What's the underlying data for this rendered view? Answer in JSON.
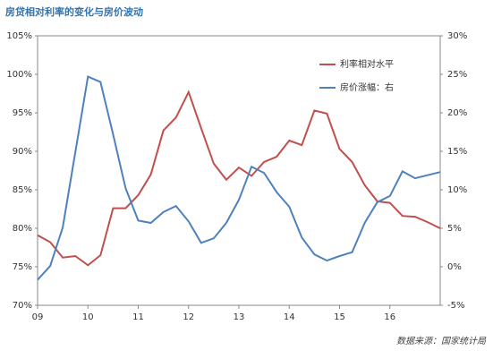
{
  "chart_data": {
    "type": "line",
    "title": "房贷相对利率的变化与房价波动",
    "source": "数据来源：国家统计局",
    "x": [
      9,
      9.25,
      9.5,
      9.75,
      10,
      10.25,
      10.5,
      10.75,
      11,
      11.25,
      11.5,
      11.75,
      12,
      12.25,
      12.5,
      12.75,
      13,
      13.25,
      13.5,
      13.75,
      14,
      14.25,
      14.5,
      14.75,
      15,
      15.25,
      15.5,
      15.75,
      16,
      16.25,
      16.5,
      16.75,
      17
    ],
    "xlim": [
      9,
      17
    ],
    "xticks": [
      {
        "value": 9,
        "label": "09"
      },
      10,
      11,
      12,
      13,
      14,
      15,
      16
    ],
    "ylim": [
      70,
      105
    ],
    "yticks": [
      {
        "value": 70,
        "label": "70%"
      },
      {
        "value": 75,
        "label": "75%"
      },
      {
        "value": 80,
        "label": "80%"
      },
      {
        "value": 85,
        "label": "85%"
      },
      {
        "value": 90,
        "label": "90%"
      },
      {
        "value": 95,
        "label": "95%"
      },
      {
        "value": 100,
        "label": "100%"
      },
      {
        "value": 105,
        "label": "105%"
      }
    ],
    "y2lim": [
      -5,
      30
    ],
    "y2ticks": [
      {
        "value": -5,
        "label": "-5%"
      },
      {
        "value": 0,
        "label": "0%"
      },
      {
        "value": 5,
        "label": "5%"
      },
      {
        "value": 10,
        "label": "10%"
      },
      {
        "value": 15,
        "label": "15%"
      },
      {
        "value": 20,
        "label": "20%"
      },
      {
        "value": 25,
        "label": "25%"
      },
      {
        "value": 30,
        "label": "30%"
      }
    ],
    "legend": "top-right",
    "series": [
      {
        "name": "利率相对水平",
        "color": "#c0504d",
        "values": [
          79.1,
          78.2,
          76.2,
          76.4,
          75.2,
          76.5,
          82.6,
          82.6,
          84.3,
          87.0,
          92.7,
          94.4,
          97.7,
          93.0,
          88.4,
          86.3,
          87.9,
          86.8,
          88.6,
          89.3,
          91.4,
          90.8,
          95.3,
          94.9,
          90.3,
          88.6,
          85.6,
          83.5,
          83.3,
          81.6,
          81.5,
          80.8,
          80.0
        ]
      },
      {
        "name": "房价涨幅：右",
        "color": "#4f81bd",
        "axis": "y2",
        "values": [
          -1.7,
          0.1,
          5.1,
          14.9,
          24.7,
          24.0,
          17.2,
          10.2,
          6.0,
          5.7,
          7.1,
          7.9,
          5.9,
          3.1,
          3.7,
          5.7,
          8.7,
          13.0,
          12.2,
          9.7,
          7.8,
          3.8,
          1.6,
          0.8,
          1.4,
          1.9,
          5.7,
          8.4,
          9.2,
          12.4,
          11.5,
          11.9,
          12.3
        ]
      }
    ]
  }
}
